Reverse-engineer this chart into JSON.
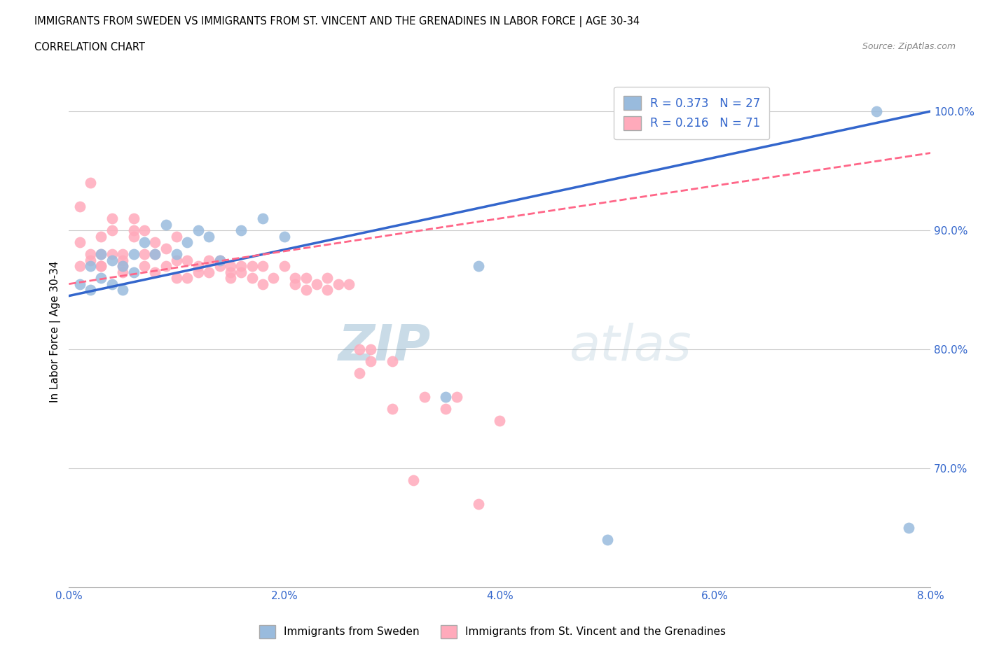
{
  "title_line1": "IMMIGRANTS FROM SWEDEN VS IMMIGRANTS FROM ST. VINCENT AND THE GRENADINES IN LABOR FORCE | AGE 30-34",
  "title_line2": "CORRELATION CHART",
  "source_text": "Source: ZipAtlas.com",
  "ylabel": "In Labor Force | Age 30-34",
  "xmin": 0.0,
  "xmax": 0.08,
  "ymin": 0.6,
  "ymax": 1.03,
  "watermark_zip": "ZIP",
  "watermark_atlas": "atlas",
  "legend_blue_r": "0.373",
  "legend_blue_n": "27",
  "legend_pink_r": "0.216",
  "legend_pink_n": "71",
  "legend_blue_label": "Immigrants from Sweden",
  "legend_pink_label": "Immigrants from St. Vincent and the Grenadines",
  "blue_color": "#99BBDD",
  "pink_color": "#FFAABB",
  "trendline_blue_color": "#3366CC",
  "trendline_pink_color": "#FF6688",
  "ytick_labels": [
    "70.0%",
    "80.0%",
    "90.0%",
    "100.0%"
  ],
  "ytick_values": [
    0.7,
    0.8,
    0.9,
    1.0
  ],
  "xtick_labels": [
    "0.0%",
    "2.0%",
    "4.0%",
    "6.0%",
    "8.0%"
  ],
  "xtick_values": [
    0.0,
    0.02,
    0.04,
    0.06,
    0.08
  ],
  "blue_x": [
    0.001,
    0.002,
    0.002,
    0.003,
    0.003,
    0.004,
    0.004,
    0.005,
    0.005,
    0.006,
    0.006,
    0.007,
    0.008,
    0.009,
    0.01,
    0.011,
    0.012,
    0.013,
    0.014,
    0.016,
    0.018,
    0.02,
    0.035,
    0.038,
    0.05,
    0.075,
    0.078
  ],
  "blue_y": [
    0.855,
    0.87,
    0.85,
    0.88,
    0.86,
    0.875,
    0.855,
    0.85,
    0.87,
    0.865,
    0.88,
    0.89,
    0.88,
    0.905,
    0.88,
    0.89,
    0.9,
    0.895,
    0.875,
    0.9,
    0.91,
    0.895,
    0.76,
    0.87,
    0.64,
    1.0,
    0.65
  ],
  "pink_x": [
    0.001,
    0.001,
    0.001,
    0.002,
    0.002,
    0.002,
    0.003,
    0.003,
    0.003,
    0.003,
    0.004,
    0.004,
    0.004,
    0.005,
    0.005,
    0.005,
    0.005,
    0.006,
    0.006,
    0.006,
    0.007,
    0.007,
    0.007,
    0.008,
    0.008,
    0.008,
    0.009,
    0.009,
    0.01,
    0.01,
    0.01,
    0.011,
    0.011,
    0.012,
    0.012,
    0.013,
    0.013,
    0.014,
    0.014,
    0.015,
    0.015,
    0.015,
    0.016,
    0.016,
    0.017,
    0.017,
    0.018,
    0.018,
    0.019,
    0.02,
    0.021,
    0.021,
    0.022,
    0.022,
    0.023,
    0.024,
    0.024,
    0.025,
    0.026,
    0.027,
    0.027,
    0.028,
    0.028,
    0.03,
    0.03,
    0.032,
    0.033,
    0.035,
    0.036,
    0.038,
    0.04
  ],
  "pink_y": [
    0.87,
    0.89,
    0.92,
    0.88,
    0.875,
    0.94,
    0.87,
    0.88,
    0.895,
    0.87,
    0.9,
    0.88,
    0.91,
    0.875,
    0.88,
    0.87,
    0.865,
    0.895,
    0.9,
    0.91,
    0.88,
    0.9,
    0.87,
    0.88,
    0.89,
    0.865,
    0.885,
    0.87,
    0.875,
    0.86,
    0.895,
    0.875,
    0.86,
    0.865,
    0.87,
    0.875,
    0.865,
    0.87,
    0.875,
    0.87,
    0.865,
    0.86,
    0.87,
    0.865,
    0.86,
    0.87,
    0.87,
    0.855,
    0.86,
    0.87,
    0.86,
    0.855,
    0.85,
    0.86,
    0.855,
    0.85,
    0.86,
    0.855,
    0.855,
    0.78,
    0.8,
    0.79,
    0.8,
    0.79,
    0.75,
    0.69,
    0.76,
    0.75,
    0.76,
    0.67,
    0.74
  ]
}
